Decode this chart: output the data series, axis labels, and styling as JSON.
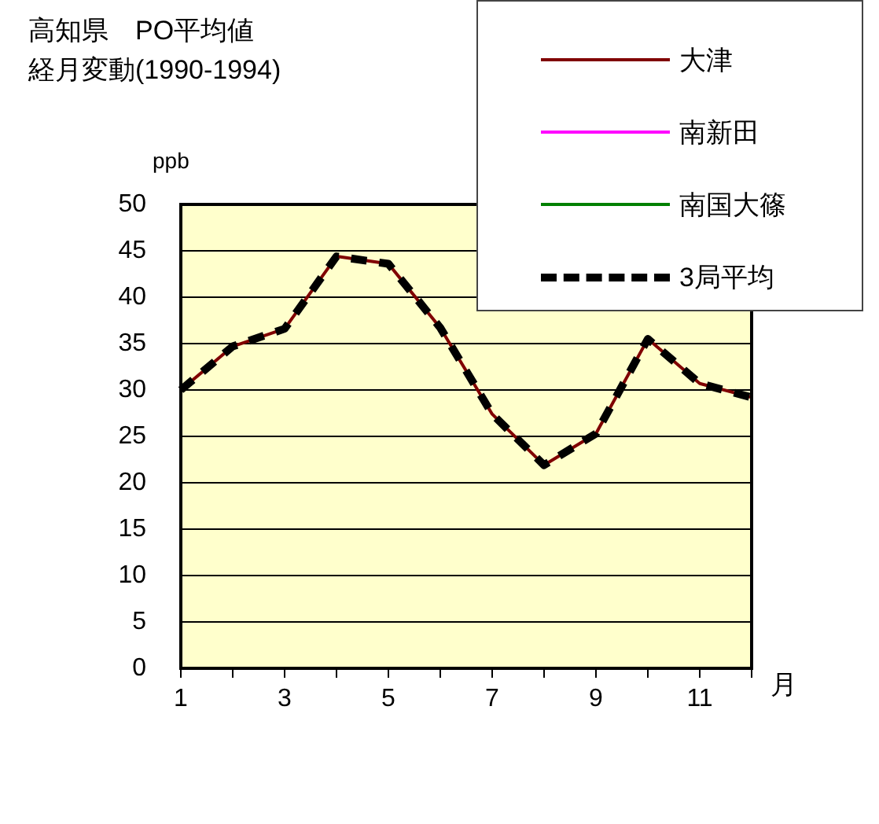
{
  "chart_data": {
    "type": "line",
    "title": "高知県　PO平均値",
    "subtitle": "経月変動(1990-1994)",
    "xlabel": "月",
    "ylabel": "ppb",
    "categories": [
      "1",
      null,
      "3",
      null,
      "5",
      null,
      "7",
      null,
      "9",
      null,
      "11",
      null
    ],
    "series": [
      {
        "name": "大津",
        "color": "#800000",
        "values": [
          30,
          34.7,
          36.6,
          44.4,
          43.6,
          36.7,
          27.4,
          21.9,
          25.3,
          35.5,
          30.7,
          29.2
        ]
      },
      {
        "name": "南新田",
        "color": "#ff00ff",
        "values": [
          null,
          null,
          null,
          null,
          null,
          null,
          null,
          null,
          null,
          null,
          null,
          null
        ]
      },
      {
        "name": "南国大篠",
        "color": "#008000",
        "values": [
          null,
          null,
          null,
          null,
          null,
          null,
          null,
          null,
          null,
          null,
          null,
          null
        ]
      },
      {
        "name": "3局平均",
        "color": "#000000",
        "line_style": "dashed",
        "values": [
          30,
          34.7,
          36.6,
          44.4,
          43.6,
          36.7,
          27.4,
          21.9,
          25.3,
          35.5,
          30.7,
          29.2
        ]
      }
    ],
    "ylim": [
      0,
      50
    ],
    "yticks": [
      0,
      5,
      10,
      15,
      20,
      25,
      30,
      35,
      40,
      45,
      50
    ],
    "grid": "y",
    "marker": "none",
    "legend": "top right"
  }
}
